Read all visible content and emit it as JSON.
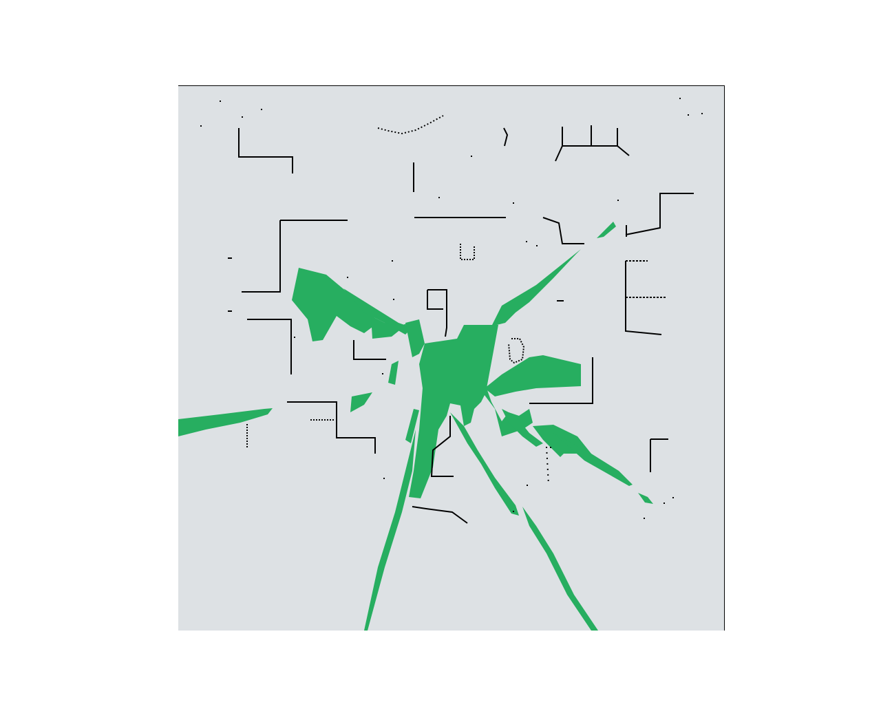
{
  "map": {
    "colors": {
      "background": "#ffffff",
      "unknown": "#dde1e4",
      "free": "#27ae60",
      "wall": "#000000",
      "border": "#000000"
    },
    "layers": [
      "occupancy-walls",
      "traversable-area"
    ]
  }
}
